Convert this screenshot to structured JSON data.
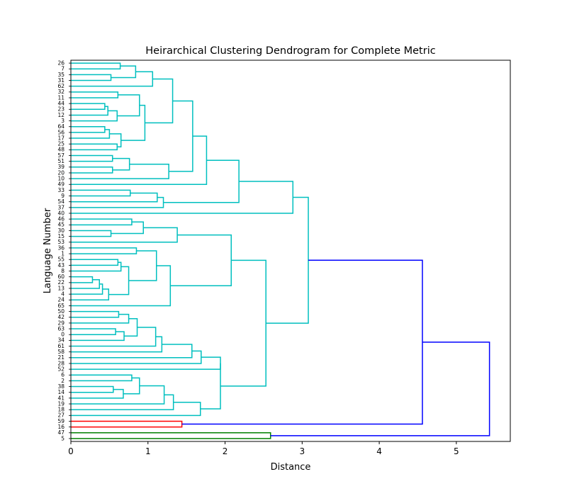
{
  "chart_data": {
    "type": "dendrogram",
    "title": "Heirarchical Clustering Dendrogram for Complete Metric",
    "xlabel": "Distance",
    "ylabel": "Language Number",
    "xlim": [
      0,
      5.7
    ],
    "x_ticks": [
      "0",
      "1",
      "2",
      "3",
      "4",
      "5"
    ],
    "leaves": [
      "26",
      "7",
      "35",
      "31",
      "62",
      "32",
      "11",
      "44",
      "23",
      "12",
      "3",
      "64",
      "56",
      "17",
      "25",
      "48",
      "57",
      "51",
      "39",
      "20",
      "10",
      "49",
      "33",
      "9",
      "54",
      "37",
      "40",
      "46",
      "45",
      "30",
      "15",
      "53",
      "36",
      "1",
      "55",
      "43",
      "8",
      "60",
      "22",
      "13",
      "4",
      "24",
      "65",
      "50",
      "42",
      "29",
      "63",
      "0",
      "34",
      "61",
      "58",
      "21",
      "28",
      "52",
      "6",
      "2",
      "38",
      "14",
      "41",
      "19",
      "18",
      "27",
      "59",
      "16",
      "47",
      "5"
    ],
    "colors": {
      "cyan": "#00bfbf",
      "red": "#ff0000",
      "green": "#008000",
      "blue": "#0000ff"
    },
    "merges": [
      {
        "a": "L:26",
        "b": "L:7",
        "h": 0.64,
        "c": "cyan"
      },
      {
        "a": "L:35",
        "b": "L:31",
        "h": 0.52,
        "c": "cyan"
      },
      {
        "a": "M:0",
        "b": "M:1",
        "h": 0.84,
        "c": "cyan"
      },
      {
        "a": "M:2",
        "b": "L:62",
        "h": 1.06,
        "c": "cyan"
      },
      {
        "a": "L:44",
        "b": "L:23",
        "h": 0.44,
        "c": "cyan"
      },
      {
        "a": "M:4",
        "b": "L:12",
        "h": 0.48,
        "c": "cyan"
      },
      {
        "a": "M:5",
        "b": "L:3",
        "h": 0.6,
        "c": "cyan"
      },
      {
        "a": "L:32",
        "b": "L:11",
        "h": 0.61,
        "c": "cyan"
      },
      {
        "a": "M:7",
        "b": "M:6",
        "h": 0.89,
        "c": "cyan"
      },
      {
        "a": "L:64",
        "b": "L:56",
        "h": 0.44,
        "c": "cyan"
      },
      {
        "a": "M:9",
        "b": "L:17",
        "h": 0.5,
        "c": "cyan"
      },
      {
        "a": "L:25",
        "b": "L:48",
        "h": 0.6,
        "c": "cyan"
      },
      {
        "a": "M:10",
        "b": "M:11",
        "h": 0.65,
        "c": "cyan"
      },
      {
        "a": "M:8",
        "b": "M:12",
        "h": 0.96,
        "c": "cyan"
      },
      {
        "a": "M:3",
        "b": "M:13",
        "h": 1.32,
        "c": "cyan"
      },
      {
        "a": "L:57",
        "b": "L:51",
        "h": 0.54,
        "c": "cyan"
      },
      {
        "a": "L:39",
        "b": "L:20",
        "h": 0.54,
        "c": "cyan"
      },
      {
        "a": "M:15",
        "b": "M:16",
        "h": 0.76,
        "c": "cyan"
      },
      {
        "a": "M:17",
        "b": "L:10",
        "h": 1.27,
        "c": "cyan"
      },
      {
        "a": "M:14",
        "b": "M:18",
        "h": 1.58,
        "c": "cyan"
      },
      {
        "a": "M:19",
        "b": "L:49",
        "h": 1.76,
        "c": "cyan"
      },
      {
        "a": "L:33",
        "b": "L:9",
        "h": 0.77,
        "c": "cyan"
      },
      {
        "a": "M:21",
        "b": "L:54",
        "h": 1.12,
        "c": "cyan"
      },
      {
        "a": "M:22",
        "b": "L:37",
        "h": 1.2,
        "c": "cyan"
      },
      {
        "a": "M:20",
        "b": "M:23",
        "h": 2.18,
        "c": "cyan"
      },
      {
        "a": "M:24",
        "b": "L:40",
        "h": 2.88,
        "c": "cyan"
      },
      {
        "a": "L:46",
        "b": "L:45",
        "h": 0.79,
        "c": "cyan"
      },
      {
        "a": "L:30",
        "b": "L:15",
        "h": 0.52,
        "c": "cyan"
      },
      {
        "a": "M:26",
        "b": "M:27",
        "h": 0.94,
        "c": "cyan"
      },
      {
        "a": "M:28",
        "b": "L:53",
        "h": 1.38,
        "c": "cyan"
      },
      {
        "a": "L:55",
        "b": "L:43",
        "h": 0.61,
        "c": "cyan"
      },
      {
        "a": "M:30",
        "b": "L:8",
        "h": 0.65,
        "c": "cyan"
      },
      {
        "a": "L:60",
        "b": "L:22",
        "h": 0.28,
        "c": "cyan"
      },
      {
        "a": "M:32",
        "b": "L:13",
        "h": 0.37,
        "c": "cyan"
      },
      {
        "a": "M:33",
        "b": "L:4",
        "h": 0.41,
        "c": "cyan"
      },
      {
        "a": "M:34",
        "b": "L:24",
        "h": 0.49,
        "c": "cyan"
      },
      {
        "a": "M:31",
        "b": "M:35",
        "h": 0.75,
        "c": "cyan"
      },
      {
        "a": "L:36",
        "b": "L:1",
        "h": 0.85,
        "c": "cyan"
      },
      {
        "a": "M:37",
        "b": "M:36",
        "h": 1.11,
        "c": "cyan"
      },
      {
        "a": "M:38",
        "b": "L:65",
        "h": 1.29,
        "c": "cyan"
      },
      {
        "a": "M:29",
        "b": "M:39",
        "h": 2.08,
        "c": "cyan"
      },
      {
        "a": "L:50",
        "b": "L:42",
        "h": 0.62,
        "c": "cyan"
      },
      {
        "a": "M:41",
        "b": "L:29",
        "h": 0.75,
        "c": "cyan"
      },
      {
        "a": "L:63",
        "b": "L:0",
        "h": 0.58,
        "c": "cyan"
      },
      {
        "a": "M:43",
        "b": "L:34",
        "h": 0.69,
        "c": "cyan"
      },
      {
        "a": "M:42",
        "b": "M:44",
        "h": 0.86,
        "c": "cyan"
      },
      {
        "a": "M:45",
        "b": "L:61",
        "h": 1.1,
        "c": "cyan"
      },
      {
        "a": "M:46",
        "b": "L:58",
        "h": 1.18,
        "c": "cyan"
      },
      {
        "a": "M:47",
        "b": "L:21",
        "h": 1.57,
        "c": "cyan"
      },
      {
        "a": "M:48",
        "b": "L:28",
        "h": 1.69,
        "c": "cyan"
      },
      {
        "a": "M:49",
        "b": "L:52",
        "h": 1.94,
        "c": "cyan"
      },
      {
        "a": "L:6",
        "b": "L:2",
        "h": 0.79,
        "c": "cyan"
      },
      {
        "a": "L:38",
        "b": "L:14",
        "h": 0.55,
        "c": "cyan"
      },
      {
        "a": "M:52",
        "b": "L:41",
        "h": 0.68,
        "c": "cyan"
      },
      {
        "a": "M:51",
        "b": "M:53",
        "h": 0.89,
        "c": "cyan"
      },
      {
        "a": "M:54",
        "b": "L:19",
        "h": 1.21,
        "c": "cyan"
      },
      {
        "a": "M:55",
        "b": "L:18",
        "h": 1.33,
        "c": "cyan"
      },
      {
        "a": "M:56",
        "b": "L:27",
        "h": 1.68,
        "c": "cyan"
      },
      {
        "a": "M:50",
        "b": "M:57",
        "h": 1.94,
        "c": "cyan"
      },
      {
        "a": "M:40",
        "b": "M:58",
        "h": 2.53,
        "c": "cyan"
      },
      {
        "a": "M:25",
        "b": "M:59",
        "h": 3.08,
        "c": "cyan"
      },
      {
        "a": "L:59",
        "b": "L:16",
        "h": 1.44,
        "c": "red"
      },
      {
        "a": "M:60",
        "b": "M:61",
        "h": 4.56,
        "c": "blue"
      },
      {
        "a": "L:47",
        "b": "L:5",
        "h": 2.59,
        "c": "green"
      },
      {
        "a": "M:62",
        "b": "M:63",
        "h": 5.43,
        "c": "blue"
      }
    ]
  }
}
